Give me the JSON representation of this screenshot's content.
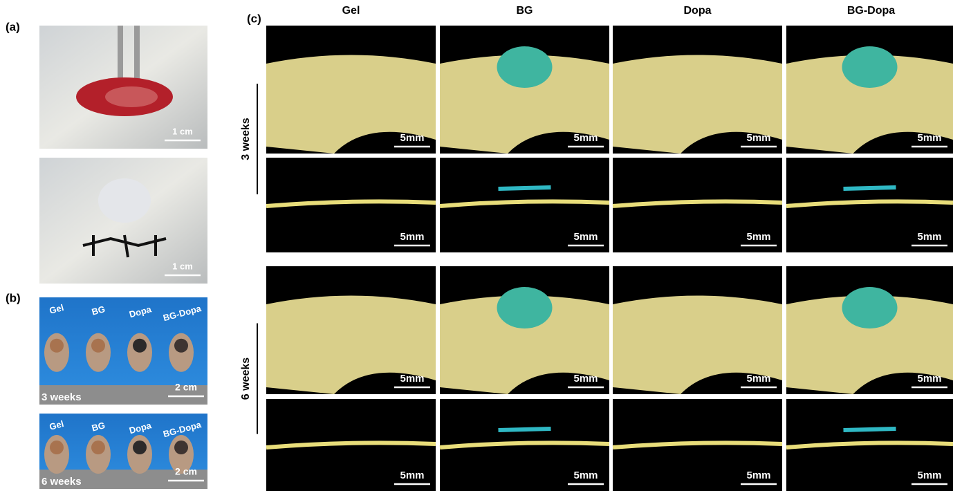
{
  "panel_a": {
    "label": "(a)",
    "images": [
      {
        "scale_bar": "1 cm"
      },
      {
        "scale_bar": "1 cm"
      }
    ]
  },
  "panel_b": {
    "label": "(b)",
    "images": [
      {
        "sample_labels": [
          "Gel",
          "BG",
          "Dopa",
          "BG-Dopa"
        ],
        "timepoint": "3 weeks",
        "scale_bar": "2 cm"
      },
      {
        "sample_labels": [
          "Gel",
          "BG",
          "Dopa",
          "BG-Dopa"
        ],
        "timepoint": "6 weeks",
        "scale_bar": "2 cm"
      }
    ]
  },
  "panel_c": {
    "label": "(c)",
    "columns": [
      "Gel",
      "BG",
      "Dopa",
      "BG-Dopa"
    ],
    "rows": [
      {
        "label": "3 weeks"
      },
      {
        "label": "6 weeks"
      }
    ],
    "scale_bar": "5mm"
  }
}
